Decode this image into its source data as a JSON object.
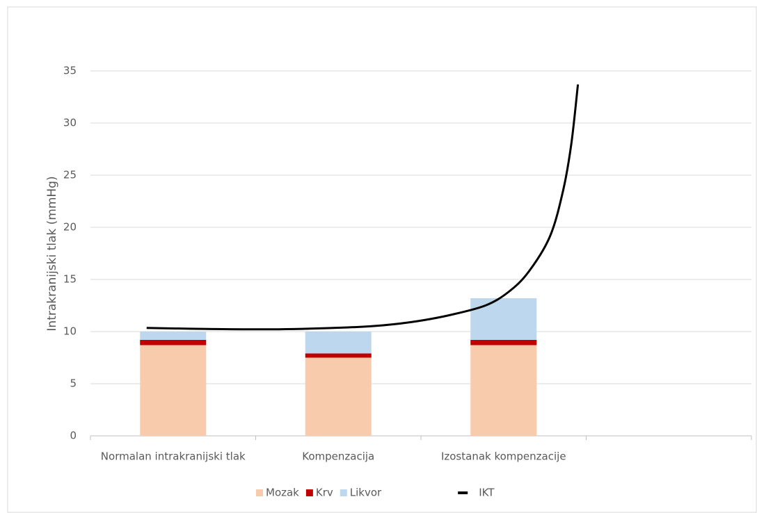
{
  "chart_data": {
    "type": "bar",
    "stacked": true,
    "y_label": "Intrakranijski tlak (mmHg)",
    "categories": [
      "Normalan intrakranijski tlak",
      "Kompenzacija",
      "Izostanak kompenzacije",
      null
    ],
    "series": [
      {
        "name": "Mozak",
        "color": "#f8cbad",
        "values": [
          8.7,
          7.5,
          8.7,
          null
        ]
      },
      {
        "name": "Krv",
        "color": "#c00000",
        "values": [
          0.5,
          0.4,
          0.5,
          null
        ]
      },
      {
        "name": "Likvor",
        "color": "#bdd7ee",
        "values": [
          0.8,
          2.1,
          4.0,
          null
        ]
      },
      {
        "name": "IKT",
        "type": "line",
        "color": "#000000",
        "x": [
          0.34,
          0.71,
          1.14,
          1.56,
          1.77,
          1.98,
          2.18,
          2.39,
          2.53,
          2.65,
          2.78,
          2.86,
          2.91,
          2.95
        ],
        "values": [
          10.35,
          10.25,
          10.22,
          10.4,
          10.6,
          11.0,
          11.6,
          12.5,
          13.8,
          15.7,
          19.1,
          23.5,
          28,
          33.7
        ]
      }
    ],
    "xlim": [
      0,
      4
    ],
    "ylim": [
      0,
      35
    ],
    "yticks": [
      0,
      5,
      10,
      15,
      20,
      25,
      30,
      35
    ],
    "grid": true
  }
}
